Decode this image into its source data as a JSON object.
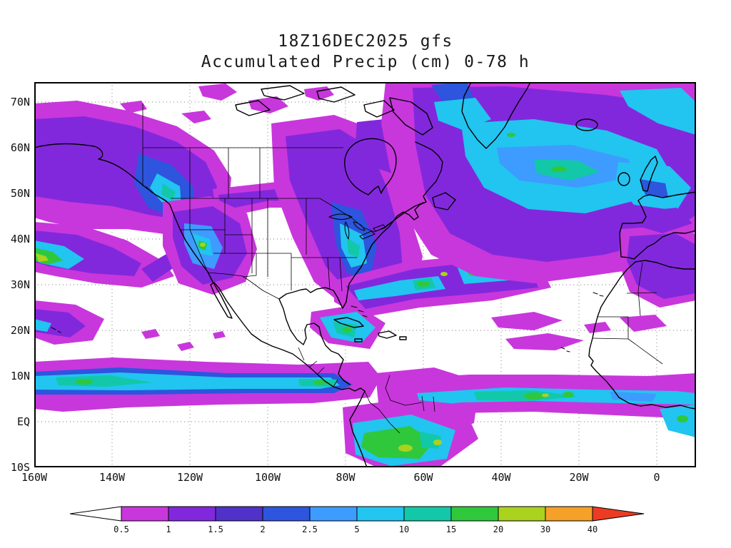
{
  "title": {
    "line1": "18Z16DEC2025 gfs",
    "line2": "Accumulated Precip (cm) 0-78 h"
  },
  "axes": {
    "lat_ticks": [
      "70N",
      "60N",
      "50N",
      "40N",
      "30N",
      "20N",
      "10N",
      "EQ",
      "10S"
    ],
    "lon_ticks": [
      "160W",
      "140W",
      "120W",
      "100W",
      "80W",
      "60W",
      "40W",
      "20W",
      "0"
    ]
  },
  "colorbar": {
    "labels": [
      "0.5",
      "1",
      "1.5",
      "2",
      "2.5",
      "5",
      "10",
      "15",
      "20",
      "30",
      "40"
    ],
    "segment_colors": [
      "#ffffff",
      "#c837dc",
      "#8228dc",
      "#5032c8",
      "#2d55dd",
      "#3e9bff",
      "#22c4f0",
      "#12c8a8",
      "#2fc83c",
      "#aad21e",
      "#f5a028",
      "#eb3c23"
    ],
    "outline_color": "#000000"
  },
  "map_style": {
    "coast_color": "#000000",
    "grid_color": "#777777",
    "background": "#ffffff"
  }
}
